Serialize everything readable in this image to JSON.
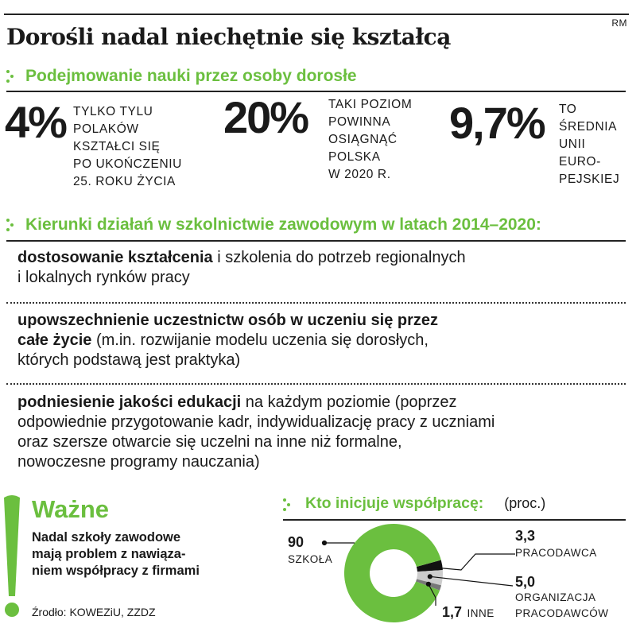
{
  "corner_mark": "RM",
  "title": "Dorośli nadal niechętnie się kształcą",
  "section1": {
    "heading": "Podejmowanie nauki przez osoby dorosłe",
    "stats": [
      {
        "value": "4%",
        "desc": "TYLKO TYLU\nPOLAKÓW\nKSZTAŁCI SIĘ\nPO UKOŃCZENIU\n25. ROKU ŻYCIA"
      },
      {
        "value": "20%",
        "desc": "TAKI POZIOM\nPOWINNA\nOSIĄGNĄĆ\nPOLSKA\nW 2020 R."
      },
      {
        "value": "9,7%",
        "desc": "TO\nŚREDNIA\nUNII\nEURO-\nPEJSKIEJ"
      }
    ]
  },
  "section2": {
    "heading": "Kierunki działań w szkolnictwie zawodowym w latach 2014–2020:",
    "items": [
      {
        "bold": "dostosowanie kształcenia",
        "rest": " i szkolenia do potrzeb regionalnych\ni lokalnych rynków pracy"
      },
      {
        "bold": "upowszechnienie uczestnictw osób w uczeniu się przez\ncałe życie",
        "rest": " (m.in. rozwijanie modelu uczenia się dorosłych,\nktórych podstawą jest praktyka)"
      },
      {
        "bold": "podniesienie jakości edukacji",
        "rest": " na każdym poziomie (poprzez\nodpowiednie przygotowanie kadr, indywidualizację pracy z uczniami\noraz szersze otwarcie się uczelni na inne niż formalne,\nnowoczesne programy nauczania)"
      }
    ]
  },
  "important": {
    "exclamation": "!",
    "heading": "Ważne",
    "text": "Nadal szkoły zawodowe\nmają problem z nawiąza-\nniem współpracy z firmami",
    "source": "Źrodło: KOWEZiU, ZZDZ"
  },
  "chart_data": {
    "type": "pie",
    "style": "donut",
    "title": "Kto inicjuje współpracę:",
    "unit": "(proc.)",
    "slices": [
      {
        "label": "SZKOŁA",
        "value": 90,
        "value_text": "90",
        "color": "#6bbf3f"
      },
      {
        "label": "PRACODAWCA",
        "value": 3.3,
        "value_text": "3,3",
        "color": "#111111"
      },
      {
        "label": "ORGANIZACJA\nPRACODAWCÓW",
        "value": 5.0,
        "value_text": "5,0",
        "color": "#cccccc"
      },
      {
        "label": "INNE",
        "value": 1.7,
        "value_text": "1,7",
        "color": "#777777"
      }
    ]
  },
  "colors": {
    "accent": "#6bbf3f",
    "text": "#1a1a1a"
  }
}
